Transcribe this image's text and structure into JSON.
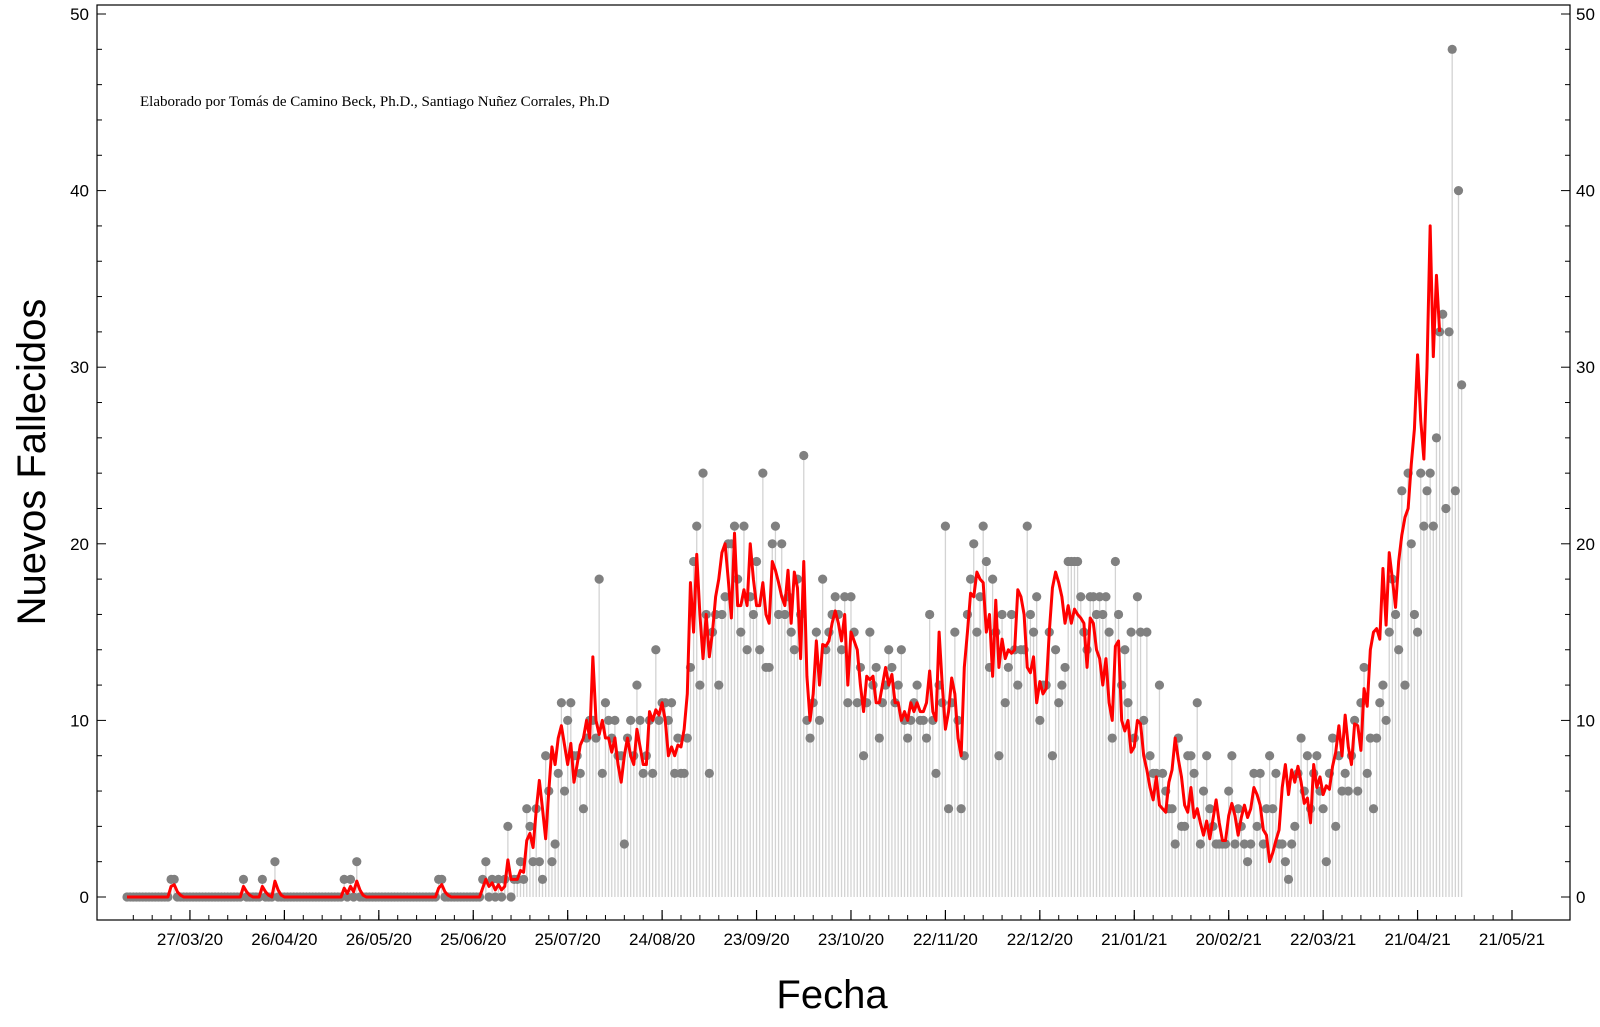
{
  "chart_data": {
    "type": "scatter",
    "title": "",
    "xlabel": "Fecha",
    "ylabel": "Nuevos Fallecidos",
    "annotation": "Elaborado por Tomás de Camino Beck, Ph.D., Santiago Nuñez Corrales, Ph.D",
    "ylim": [
      0,
      50
    ],
    "yticks": [
      0,
      10,
      20,
      30,
      40,
      50
    ],
    "xrange": [
      "2020-03-07",
      "2021-05-21"
    ],
    "xticks": [
      {
        "date": "2020-03-27",
        "label": "27/03/20"
      },
      {
        "date": "2020-04-26",
        "label": "26/04/20"
      },
      {
        "date": "2020-05-26",
        "label": "26/05/20"
      },
      {
        "date": "2020-06-25",
        "label": "25/06/20"
      },
      {
        "date": "2020-07-25",
        "label": "25/07/20"
      },
      {
        "date": "2020-08-24",
        "label": "24/08/20"
      },
      {
        "date": "2020-09-23",
        "label": "23/09/20"
      },
      {
        "date": "2020-10-23",
        "label": "23/10/20"
      },
      {
        "date": "2020-11-22",
        "label": "22/11/20"
      },
      {
        "date": "2020-12-22",
        "label": "22/12/20"
      },
      {
        "date": "2021-01-21",
        "label": "21/01/21"
      },
      {
        "date": "2021-02-20",
        "label": "20/02/21"
      },
      {
        "date": "2021-03-22",
        "label": "22/03/21"
      },
      {
        "date": "2021-04-21",
        "label": "21/04/21"
      },
      {
        "date": "2021-05-21",
        "label": "21/05/21"
      }
    ],
    "grid": false,
    "legend": "none",
    "series": [
      {
        "style": "points-with-stems",
        "color": "#808080",
        "stem_color": "#d3d3d3",
        "start_date": "2020-03-07",
        "step_days": 1,
        "values": [
          0,
          0,
          0,
          0,
          0,
          0,
          0,
          0,
          0,
          0,
          0,
          0,
          0,
          0,
          1,
          1,
          0,
          0,
          0,
          0,
          0,
          0,
          0,
          0,
          0,
          0,
          0,
          0,
          0,
          0,
          0,
          0,
          0,
          0,
          0,
          0,
          0,
          1,
          0,
          0,
          0,
          0,
          0,
          1,
          0,
          0,
          0,
          2,
          0,
          0,
          0,
          0,
          0,
          0,
          0,
          0,
          0,
          0,
          0,
          0,
          0,
          0,
          0,
          0,
          0,
          0,
          0,
          0,
          0,
          1,
          0,
          1,
          0,
          2,
          0,
          0,
          0,
          0,
          0,
          0,
          0,
          0,
          0,
          0,
          0,
          0,
          0,
          0,
          0,
          0,
          0,
          0,
          0,
          0,
          0,
          0,
          0,
          0,
          0,
          1,
          1,
          0,
          0,
          0,
          0,
          0,
          0,
          0,
          0,
          0,
          0,
          0,
          0,
          1,
          2,
          0,
          1,
          0,
          1,
          0,
          1,
          4,
          0,
          1,
          1,
          2,
          1,
          5,
          4,
          2,
          5,
          2,
          1,
          8,
          6,
          2,
          3,
          7,
          11,
          6,
          10,
          11,
          8,
          8,
          7,
          5,
          9,
          10,
          10,
          9,
          18,
          7,
          11,
          10,
          9,
          10,
          8,
          8,
          3,
          9,
          10,
          8,
          12,
          10,
          7,
          8,
          10,
          7,
          14,
          10,
          11,
          11,
          10,
          11,
          7,
          9,
          7,
          7,
          9,
          13,
          19,
          21,
          12,
          24,
          16,
          7,
          15,
          16,
          12,
          16,
          17,
          20,
          20,
          21,
          18,
          15,
          21,
          14,
          17,
          16,
          19,
          14,
          24,
          13,
          13,
          20,
          21,
          16,
          20,
          16,
          17,
          15,
          14,
          18,
          16,
          25,
          10,
          9,
          11,
          15,
          10,
          18,
          14,
          15,
          16,
          17,
          16,
          14,
          17,
          11,
          17,
          15,
          11,
          13,
          8,
          11,
          15,
          12,
          13,
          9,
          11,
          12,
          14,
          13,
          11,
          12,
          14,
          10,
          9,
          10,
          11,
          12,
          10,
          10,
          9,
          16,
          10,
          7,
          12,
          11,
          21,
          5,
          11,
          15,
          10,
          5,
          8,
          16,
          18,
          20,
          15,
          17,
          21,
          19,
          13,
          18,
          15,
          8,
          16,
          11,
          13,
          16,
          14,
          12,
          14,
          14,
          21,
          16,
          15,
          17,
          10,
          12,
          12,
          15,
          8,
          14,
          11,
          12,
          13,
          19,
          19,
          19,
          19,
          17,
          15,
          14,
          17,
          17,
          16,
          17,
          16,
          17,
          15,
          9,
          19,
          16,
          12,
          14,
          11,
          15,
          9,
          17,
          15,
          10,
          15,
          8,
          7,
          7,
          12,
          7,
          6,
          5,
          5,
          3,
          9,
          4,
          4,
          8,
          8,
          7,
          11,
          3,
          6,
          8,
          5,
          4,
          3,
          3,
          3,
          3,
          6,
          8,
          3,
          5,
          4,
          3,
          2,
          3,
          7,
          4,
          7,
          3,
          5,
          8,
          5,
          7,
          3,
          3,
          2,
          1,
          3,
          4,
          7,
          9,
          6,
          8,
          5,
          7,
          8,
          6,
          5,
          2,
          7,
          9,
          4,
          8,
          6,
          7,
          6,
          8,
          10,
          6,
          11,
          13,
          7,
          9,
          5,
          9,
          11,
          12,
          10,
          15,
          18,
          16,
          14,
          23,
          12,
          24,
          20,
          16,
          15,
          24,
          21,
          23,
          24,
          21,
          26,
          32,
          33,
          22,
          32,
          48,
          23,
          40,
          29
        ]
      },
      {
        "style": "line",
        "color": "#ff0000",
        "start_date": "2020-03-07",
        "step_days": 1,
        "values": [
          0,
          0,
          0,
          0,
          0,
          0,
          0,
          0,
          0,
          0,
          0,
          0,
          0,
          0,
          0.6,
          0.7,
          0.3,
          0.1,
          0,
          0,
          0,
          0,
          0,
          0,
          0,
          0,
          0,
          0,
          0,
          0,
          0,
          0,
          0,
          0,
          0,
          0,
          0,
          0.6,
          0.3,
          0.1,
          0,
          0,
          0,
          0.6,
          0.3,
          0.1,
          0,
          0.9,
          0.4,
          0.1,
          0,
          0,
          0,
          0,
          0,
          0,
          0,
          0,
          0,
          0,
          0,
          0,
          0,
          0,
          0,
          0,
          0,
          0,
          0,
          0.5,
          0.2,
          0.6,
          0.3,
          0.9,
          0.4,
          0.1,
          0,
          0,
          0,
          0,
          0,
          0,
          0,
          0,
          0,
          0,
          0,
          0,
          0,
          0,
          0,
          0,
          0,
          0,
          0,
          0,
          0,
          0,
          0,
          0.5,
          0.7,
          0.3,
          0.1,
          0,
          0,
          0,
          0,
          0,
          0,
          0,
          0,
          0,
          0,
          0.5,
          1,
          0.6,
          0.8,
          0.4,
          0.7,
          0.4,
          0.6,
          2.1,
          1,
          1,
          1,
          1.5,
          1.4,
          3.2,
          3.6,
          2.8,
          4.9,
          6.6,
          5,
          3.3,
          6,
          8.5,
          7.5,
          9,
          9.7,
          8.6,
          7.5,
          8.7,
          6.5,
          7.5,
          8.6,
          9,
          10,
          9,
          13.6,
          10,
          9.2,
          10,
          9,
          9,
          8.2,
          9,
          7.5,
          6.5,
          8,
          9,
          8,
          7.5,
          9.5,
          8.5,
          7.5,
          7.5,
          10.5,
          10,
          10.6,
          10.3,
          11,
          10,
          8,
          8.5,
          8,
          8.6,
          8.5,
          9.5,
          11.5,
          17.8,
          15,
          19.4,
          16,
          13.5,
          16,
          13.6,
          15,
          17,
          18,
          19.5,
          20,
          18,
          15.8,
          20.6,
          16.5,
          16.5,
          17.4,
          16.5,
          20,
          18,
          16.5,
          16.5,
          17.8,
          16,
          15.5,
          19,
          18.5,
          17.8,
          17,
          16.5,
          18.5,
          15.5,
          18.4,
          17.5,
          13.5,
          19,
          12.5,
          10,
          11.5,
          14.5,
          12,
          14.3,
          14.2,
          14.5,
          15.5,
          16.2,
          15.5,
          14.5,
          16,
          12,
          15,
          14.5,
          14,
          12,
          10.5,
          12.5,
          12.3,
          12.5,
          11,
          11,
          12,
          13,
          12,
          12.6,
          11,
          11,
          10,
          10.5,
          10,
          11,
          10.5,
          11,
          10.5,
          10.5,
          11,
          12.8,
          10.5,
          10,
          15,
          12,
          9.5,
          10.5,
          12.4,
          11.5,
          9,
          8,
          13,
          15,
          17.2,
          17,
          18.4,
          18,
          17.8,
          15,
          16,
          12.5,
          16.8,
          13,
          14.6,
          13.5,
          14,
          13.8,
          14,
          17.4,
          17,
          16,
          13,
          12.7,
          13.6,
          11,
          12.2,
          11.5,
          11.8,
          15,
          17.5,
          18.4,
          17.8,
          17,
          15.5,
          16.5,
          15.5,
          16.3,
          16,
          15.8,
          15.5,
          13,
          15.8,
          15.5,
          14,
          13.5,
          12,
          13.5,
          11,
          10,
          14.2,
          14.5,
          10,
          9.4,
          10,
          8.2,
          8.5,
          10,
          9.8,
          8,
          7.2,
          6.2,
          5.5,
          6.8,
          5.2,
          5,
          4.8,
          6.5,
          7.2,
          9,
          7.8,
          6.8,
          5.2,
          4.8,
          6.2,
          4.5,
          5,
          4.2,
          3.5,
          4.3,
          3.3,
          4.4,
          5.5,
          4.2,
          3.2,
          3.2,
          4.6,
          5.3,
          4.6,
          3.5,
          4.5,
          5.2,
          4.5,
          5,
          6.2,
          5.8,
          5.2,
          3.8,
          3.5,
          2.0,
          2.5,
          3.2,
          3.8,
          6.2,
          7.5,
          5.8,
          7.2,
          6.5,
          7.4,
          6.5,
          5.3,
          5.6,
          4.2,
          7.5,
          6.2,
          6.8,
          5.8,
          6.3,
          6.1,
          7.4,
          8.2,
          9.7,
          8,
          10.3,
          8.5,
          7.5,
          9.8,
          9.7,
          8.3,
          11.8,
          10.8,
          14,
          15,
          15.2,
          14.6,
          18.6,
          15.4,
          19.5,
          18,
          16.4,
          19,
          20.5,
          21.5,
          22,
          24.5,
          26.5,
          30.7,
          27,
          24.8,
          30,
          38,
          30.6,
          35.2,
          32
        ]
      }
    ]
  }
}
